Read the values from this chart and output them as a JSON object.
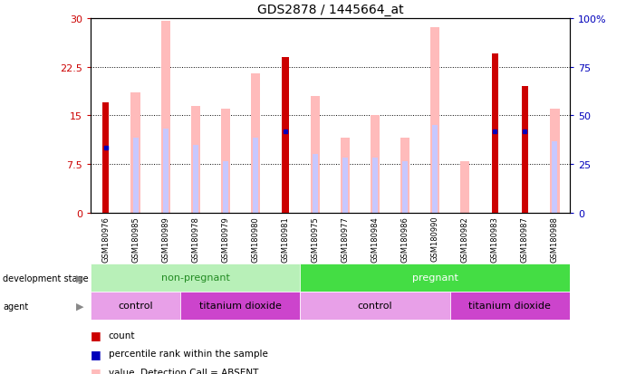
{
  "title": "GDS2878 / 1445664_at",
  "samples": [
    "GSM180976",
    "GSM180985",
    "GSM180989",
    "GSM180978",
    "GSM180979",
    "GSM180980",
    "GSM180981",
    "GSM180975",
    "GSM180977",
    "GSM180984",
    "GSM180986",
    "GSM180990",
    "GSM180982",
    "GSM180983",
    "GSM180987",
    "GSM180988"
  ],
  "count_values": [
    17.0,
    null,
    null,
    null,
    null,
    null,
    24.0,
    null,
    null,
    null,
    null,
    null,
    null,
    24.5,
    19.5,
    null
  ],
  "rank_values": [
    10.0,
    null,
    null,
    null,
    null,
    null,
    12.5,
    null,
    null,
    null,
    null,
    null,
    null,
    12.5,
    12.5,
    null
  ],
  "absent_value": [
    null,
    18.5,
    29.5,
    16.5,
    16.0,
    21.5,
    null,
    18.0,
    11.5,
    15.0,
    11.5,
    28.5,
    8.0,
    null,
    null,
    16.0
  ],
  "absent_rank": [
    null,
    11.5,
    13.0,
    10.5,
    8.0,
    11.5,
    null,
    9.0,
    8.5,
    8.5,
    8.0,
    13.5,
    null,
    null,
    null,
    11.0
  ],
  "ylim_left": [
    0,
    30
  ],
  "ylim_right": [
    0,
    100
  ],
  "yticks_left": [
    0,
    7.5,
    15.0,
    22.5,
    30
  ],
  "yticks_right": [
    0,
    25,
    50,
    75,
    100
  ],
  "count_color": "#cc0000",
  "rank_color": "#0000bb",
  "absent_value_color": "#ffbbbb",
  "absent_rank_color": "#c8c8ff",
  "non_pregnant_color": "#b8f0b8",
  "pregnant_color": "#44dd44",
  "control_color": "#e8a0e8",
  "titanium_color": "#cc44cc",
  "grid_color": "black",
  "ytick_label_left": [
    "0",
    "7.5",
    "15",
    "22.5",
    "30"
  ],
  "ytick_label_right": [
    "0",
    "25",
    "50",
    "75",
    "100%"
  ]
}
